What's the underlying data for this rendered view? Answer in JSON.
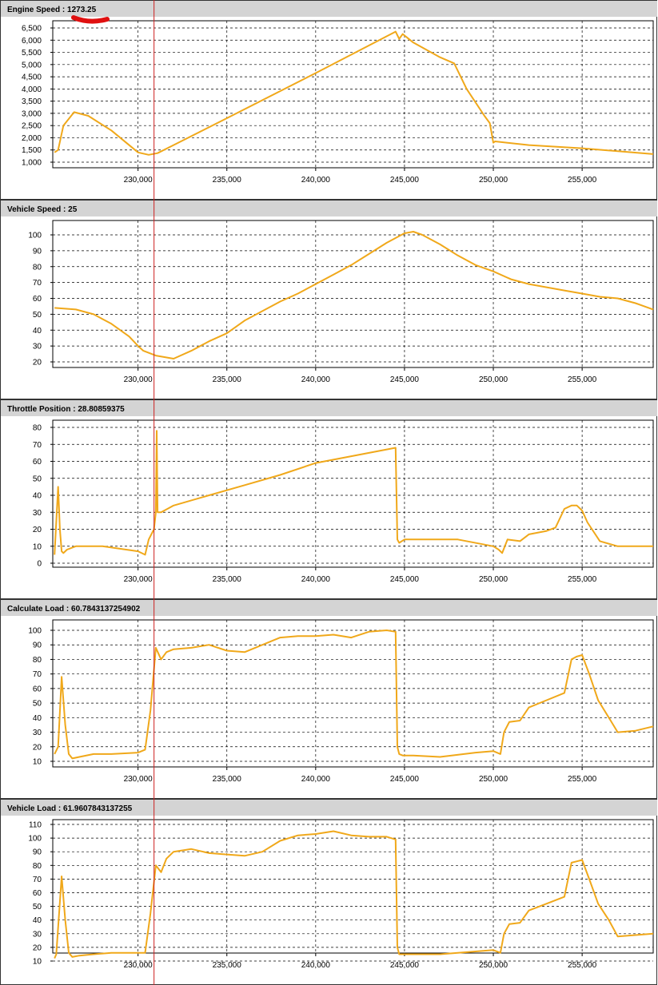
{
  "colors": {
    "series": "#F0A81A",
    "cursor": "#CC2020",
    "header_bg": "#D4D4D4",
    "grid": "#000000",
    "marker": "#E01010"
  },
  "x_axis": {
    "ticks": [
      230000,
      235000,
      240000,
      245000,
      250000,
      255000
    ],
    "tick_labels": [
      "230,000",
      "235,000",
      "240,000",
      "245,000",
      "250,000",
      "255,000"
    ],
    "range": [
      225200,
      259000
    ]
  },
  "cursor_x": 230900,
  "chart_data": [
    {
      "type": "line",
      "title": "Engine Speed : 1273.25",
      "label": "Engine Speed",
      "value": "1273.25",
      "ylim": [
        900,
        6600
      ],
      "yticks": [
        1000,
        1500,
        2000,
        2500,
        3000,
        3500,
        4000,
        4500,
        5000,
        5500,
        6000,
        6500
      ],
      "ytick_labels": [
        "1,000",
        "1,500",
        "2,000",
        "2,500",
        "3,000",
        "3,500",
        "4,000",
        "4,500",
        "5,000",
        "5,500",
        "6,000",
        "6,500"
      ],
      "x": [
        225300,
        225500,
        225800,
        226400,
        227200,
        228500,
        230000,
        230600,
        231100,
        232000,
        235000,
        240000,
        244500,
        244700,
        244900,
        245500,
        247000,
        247800,
        248500,
        249500,
        249800,
        250000,
        250100,
        252000,
        255000,
        259000
      ],
      "y": [
        1400,
        1500,
        2500,
        3050,
        2900,
        2300,
        1400,
        1300,
        1370,
        1700,
        2800,
        4650,
        6350,
        6050,
        6250,
        5900,
        5300,
        5050,
        4000,
        2900,
        2600,
        1800,
        1850,
        1700,
        1570,
        1330
      ]
    },
    {
      "type": "line",
      "title": "Vehicle Speed : 25",
      "label": "Vehicle Speed",
      "value": "25",
      "ylim": [
        17,
        106
      ],
      "yticks": [
        20,
        30,
        40,
        50,
        60,
        70,
        80,
        90,
        100
      ],
      "ytick_labels": [
        "20",
        "30",
        "40",
        "50",
        "60",
        "70",
        "80",
        "90",
        "100"
      ],
      "x": [
        225300,
        226500,
        227500,
        228500,
        229500,
        230000,
        230300,
        231000,
        232000,
        233000,
        234000,
        235000,
        236000,
        237000,
        238000,
        239000,
        240000,
        241000,
        242000,
        243000,
        244000,
        245000,
        245500,
        246000,
        247000,
        248000,
        249000,
        250000,
        251000,
        252000,
        253000,
        254000,
        255000,
        256000,
        257000,
        258000,
        259000
      ],
      "y": [
        54,
        53,
        50,
        44,
        36,
        30,
        27,
        24,
        22,
        27,
        33,
        38,
        46,
        52,
        58,
        63,
        69,
        75,
        81,
        88,
        95,
        101,
        102,
        100,
        94,
        87,
        81,
        77,
        72,
        69,
        67,
        65,
        63,
        61,
        60,
        57,
        53
      ]
    },
    {
      "type": "line",
      "title": "Throttle Position : 28.80859375",
      "label": "Throttle Position",
      "value": "28.80859375",
      "ylim": [
        -2,
        81
      ],
      "yticks": [
        0,
        10,
        20,
        30,
        40,
        50,
        60,
        70,
        80
      ],
      "ytick_labels": [
        "0",
        "10",
        "20",
        "30",
        "40",
        "50",
        "60",
        "70",
        "80"
      ],
      "x": [
        225300,
        225500,
        225600,
        225700,
        225800,
        226000,
        226500,
        228000,
        230000,
        230400,
        230600,
        230900,
        231000,
        231050,
        231100,
        231300,
        232000,
        234000,
        236000,
        238000,
        240000,
        242000,
        244000,
        244500,
        244600,
        244700,
        245000,
        248000,
        250000,
        250300,
        250500,
        250800,
        251500,
        252000,
        253000,
        253500,
        254000,
        254400,
        254700,
        255000,
        255300,
        256000,
        257000,
        259000
      ],
      "y": [
        5,
        45,
        20,
        7,
        6,
        8,
        10,
        10,
        7,
        5,
        14,
        20,
        30,
        78,
        30,
        30,
        34,
        40,
        46,
        52,
        59,
        63,
        67,
        68,
        14,
        12,
        14,
        14,
        10,
        8,
        6,
        14,
        13,
        17,
        19,
        21,
        32,
        34,
        34,
        31,
        24,
        13,
        10,
        10
      ]
    },
    {
      "type": "line",
      "title": "Calculate Load : 60.7843137254902",
      "label": "Calculate Load",
      "value": "60.7843137254902",
      "ylim": [
        7,
        103
      ],
      "yticks": [
        10,
        20,
        30,
        40,
        50,
        60,
        70,
        80,
        90,
        100
      ],
      "ytick_labels": [
        "10",
        "20",
        "30",
        "40",
        "50",
        "60",
        "70",
        "80",
        "90",
        "100"
      ],
      "x": [
        225300,
        225500,
        225700,
        225900,
        226100,
        226300,
        226700,
        227500,
        228500,
        230000,
        230400,
        230700,
        231000,
        231300,
        231600,
        232000,
        233000,
        234000,
        235000,
        236000,
        237000,
        238000,
        239000,
        240000,
        241000,
        242000,
        243000,
        244000,
        244500,
        244600,
        244700,
        244900,
        245500,
        247000,
        249000,
        250000,
        250400,
        250600,
        250900,
        251500,
        252000,
        253000,
        254000,
        254400,
        254700,
        255000,
        255400,
        255900,
        256500,
        257000,
        258000,
        259000
      ],
      "y": [
        15,
        20,
        68,
        35,
        15,
        12,
        13,
        15,
        15,
        16,
        18,
        45,
        88,
        80,
        85,
        87,
        88,
        90,
        86,
        85,
        90,
        95,
        96,
        96,
        97,
        95,
        99,
        100,
        99,
        20,
        15,
        14,
        14,
        13,
        16,
        17,
        15,
        30,
        37,
        38,
        47,
        52,
        57,
        80,
        82,
        83,
        70,
        52,
        40,
        30,
        31,
        34
      ]
    },
    {
      "type": "line",
      "title": "Vehicle Load : 61.9607843137255",
      "label": "Vehicle Load",
      "value": "61.9607843137255",
      "ylim": [
        7,
        113
      ],
      "yticks": [
        10,
        20,
        30,
        40,
        50,
        60,
        70,
        80,
        90,
        100,
        110
      ],
      "ytick_labels": [
        "10",
        "20",
        "30",
        "40",
        "50",
        "60",
        "70",
        "80",
        "90",
        "100",
        "110"
      ],
      "x": [
        225300,
        225400,
        225700,
        225900,
        226100,
        226300,
        226700,
        227500,
        228500,
        230000,
        230400,
        230700,
        231000,
        231300,
        231600,
        232000,
        233000,
        234000,
        235000,
        236000,
        237000,
        238000,
        239000,
        240000,
        241000,
        242000,
        243000,
        244000,
        244500,
        244600,
        244700,
        244900,
        245500,
        247000,
        249000,
        250000,
        250400,
        250600,
        250900,
        251500,
        252000,
        253000,
        254000,
        254400,
        254700,
        255000,
        255400,
        255900,
        256500,
        257000,
        258000,
        259000
      ],
      "y": [
        12,
        15,
        72,
        40,
        16,
        13,
        14,
        15,
        16,
        16,
        16,
        45,
        80,
        75,
        85,
        90,
        92,
        89,
        88,
        87,
        90,
        98,
        102,
        103,
        105,
        102,
        101,
        101,
        99,
        20,
        15,
        15,
        15,
        15,
        17,
        18,
        16,
        30,
        37,
        38,
        47,
        52,
        57,
        82,
        83,
        84,
        70,
        52,
        40,
        28,
        29,
        30
      ]
    }
  ]
}
